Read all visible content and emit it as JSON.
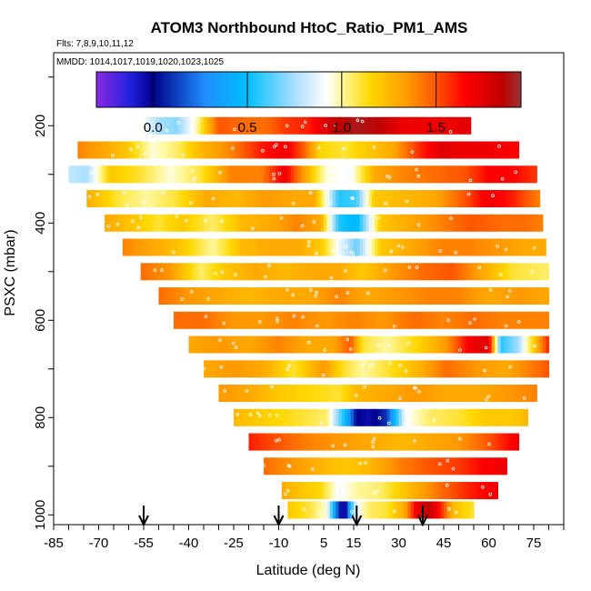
{
  "chart_data": {
    "type": "heatmap",
    "title": "ATOM3 Northbound HtoC_Ratio_PM1_AMS",
    "flights_note": "Flts: 7,8,9,10,11,12",
    "dates_note": "MMDD: 1014,1017,1019,1020,1023,1025",
    "xlabel": "Latitude (deg N)",
    "ylabel": "PSXC (mbar)",
    "xlim": [
      -85,
      85
    ],
    "ylim": [
      1020,
      50
    ],
    "x_ticks": [
      -85,
      -70,
      -55,
      -40,
      -25,
      -10,
      5,
      15,
      30,
      45,
      60,
      75
    ],
    "x_tick_labels": [
      "-85",
      "-70",
      "-55",
      "-40",
      "-25",
      "-10",
      "5",
      "15",
      "30",
      "45",
      "60",
      "75"
    ],
    "y_ticks": [
      200,
      400,
      600,
      800,
      1000
    ],
    "y_tick_labels": [
      "200",
      "400",
      "600",
      "800",
      "1000"
    ],
    "colorbar": {
      "min": -0.3,
      "max": 1.95,
      "ticks": [
        0.0,
        0.5,
        1.0,
        1.5
      ],
      "tick_labels": [
        "0.0",
        "0.5",
        "1.0",
        "1.5"
      ],
      "stops": [
        {
          "v": -0.3,
          "c": "#8a2be2"
        },
        {
          "v": -0.12,
          "c": "#2020dd"
        },
        {
          "v": 0.0,
          "c": "#00008b"
        },
        {
          "v": 0.28,
          "c": "#1e90ff"
        },
        {
          "v": 0.5,
          "c": "#00bfff"
        },
        {
          "v": 0.75,
          "c": "#aaddff"
        },
        {
          "v": 0.92,
          "c": "#ffffff"
        },
        {
          "v": 1.0,
          "c": "#fff8a0"
        },
        {
          "v": 1.15,
          "c": "#ffd700"
        },
        {
          "v": 1.35,
          "c": "#ff9900"
        },
        {
          "v": 1.5,
          "c": "#ff5500"
        },
        {
          "v": 1.65,
          "c": "#ff0000"
        },
        {
          "v": 1.85,
          "c": "#c00000"
        },
        {
          "v": 1.95,
          "c": "#993333"
        }
      ]
    },
    "arrow_latitudes": [
      -55,
      -10,
      16,
      38
    ],
    "bands": [
      {
        "p": 200,
        "lat0": -56,
        "lat1": 54,
        "cp": [
          [
            -56,
            0.95
          ],
          [
            -50,
            0.75
          ],
          [
            -44,
            0.7
          ],
          [
            -38,
            0.95
          ],
          [
            -30,
            1.5
          ],
          [
            -22,
            1.45
          ],
          [
            -14,
            1.45
          ],
          [
            -8,
            1.55
          ],
          [
            0,
            1.6
          ],
          [
            8,
            1.82
          ],
          [
            16,
            1.9
          ],
          [
            24,
            1.85
          ],
          [
            32,
            1.7
          ],
          [
            40,
            1.7
          ],
          [
            48,
            1.7
          ],
          [
            54,
            1.75
          ]
        ]
      },
      {
        "p": 250,
        "lat0": -77,
        "lat1": 70,
        "cp": [
          [
            -77,
            1.4
          ],
          [
            -68,
            1.3
          ],
          [
            -60,
            1.2
          ],
          [
            -52,
            0.95
          ],
          [
            -44,
            1.05
          ],
          [
            -36,
            1.25
          ],
          [
            -26,
            1.4
          ],
          [
            -16,
            1.6
          ],
          [
            -8,
            1.7
          ],
          [
            -2,
            1.5
          ],
          [
            4,
            1.15
          ],
          [
            12,
            1.1
          ],
          [
            20,
            1.2
          ],
          [
            28,
            1.3
          ],
          [
            36,
            1.55
          ],
          [
            44,
            1.75
          ],
          [
            52,
            1.7
          ],
          [
            60,
            1.7
          ],
          [
            70,
            1.65
          ]
        ]
      },
      {
        "p": 300,
        "lat0": -80,
        "lat1": 76,
        "cp": [
          [
            -80,
            0.8
          ],
          [
            -74,
            0.75
          ],
          [
            -66,
            1.2
          ],
          [
            -56,
            1.1
          ],
          [
            -46,
            0.95
          ],
          [
            -36,
            1.1
          ],
          [
            -26,
            1.4
          ],
          [
            -16,
            1.4
          ],
          [
            -8,
            1.7
          ],
          [
            -2,
            1.35
          ],
          [
            6,
            0.95
          ],
          [
            14,
            0.9
          ],
          [
            22,
            1.3
          ],
          [
            32,
            1.4
          ],
          [
            42,
            1.45
          ],
          [
            52,
            1.5
          ],
          [
            60,
            1.65
          ],
          [
            68,
            1.65
          ],
          [
            76,
            1.55
          ]
        ]
      },
      {
        "p": 350,
        "lat0": -74,
        "lat1": 77,
        "cp": [
          [
            -74,
            1.3
          ],
          [
            -64,
            1.1
          ],
          [
            -54,
            1.0
          ],
          [
            -44,
            1.1
          ],
          [
            -34,
            1.3
          ],
          [
            -24,
            1.25
          ],
          [
            -14,
            1.35
          ],
          [
            -6,
            1.3
          ],
          [
            2,
            1.3
          ],
          [
            10,
            0.55
          ],
          [
            16,
            0.6
          ],
          [
            22,
            1.2
          ],
          [
            32,
            1.25
          ],
          [
            42,
            1.3
          ],
          [
            52,
            1.5
          ],
          [
            60,
            1.7
          ],
          [
            68,
            1.6
          ],
          [
            77,
            1.4
          ]
        ]
      },
      {
        "p": 400,
        "lat0": -68,
        "lat1": 78,
        "cp": [
          [
            -68,
            1.3
          ],
          [
            -58,
            1.2
          ],
          [
            -50,
            1.1
          ],
          [
            -42,
            1.2
          ],
          [
            -32,
            1.05
          ],
          [
            -22,
            1.25
          ],
          [
            -12,
            1.3
          ],
          [
            -4,
            1.4
          ],
          [
            4,
            1.3
          ],
          [
            10,
            0.55
          ],
          [
            16,
            0.45
          ],
          [
            24,
            1.2
          ],
          [
            34,
            1.3
          ],
          [
            44,
            1.4
          ],
          [
            54,
            1.5
          ],
          [
            64,
            1.45
          ],
          [
            72,
            1.45
          ],
          [
            78,
            1.4
          ]
        ]
      },
      {
        "p": 450,
        "lat0": -62,
        "lat1": 79,
        "cp": [
          [
            -62,
            1.4
          ],
          [
            -52,
            1.3
          ],
          [
            -42,
            1.2
          ],
          [
            -32,
            1.0
          ],
          [
            -22,
            1.25
          ],
          [
            -12,
            1.3
          ],
          [
            -4,
            1.3
          ],
          [
            4,
            1.2
          ],
          [
            10,
            0.9
          ],
          [
            16,
            0.65
          ],
          [
            24,
            1.2
          ],
          [
            34,
            1.3
          ],
          [
            44,
            1.4
          ],
          [
            54,
            1.4
          ],
          [
            64,
            1.35
          ],
          [
            72,
            1.3
          ],
          [
            79,
            1.3
          ]
        ]
      },
      {
        "p": 500,
        "lat0": -56,
        "lat1": 80,
        "cp": [
          [
            -56,
            1.45
          ],
          [
            -46,
            1.35
          ],
          [
            -36,
            1.05
          ],
          [
            -28,
            1.2
          ],
          [
            -18,
            1.3
          ],
          [
            -8,
            1.25
          ],
          [
            2,
            1.3
          ],
          [
            10,
            1.3
          ],
          [
            18,
            1.2
          ],
          [
            28,
            1.35
          ],
          [
            38,
            1.45
          ],
          [
            48,
            1.5
          ],
          [
            58,
            1.3
          ],
          [
            68,
            1.1
          ],
          [
            80,
            1.05
          ]
        ]
      },
      {
        "p": 550,
        "lat0": -50,
        "lat1": 80,
        "cp": [
          [
            -50,
            1.45
          ],
          [
            -40,
            1.35
          ],
          [
            -30,
            1.3
          ],
          [
            -20,
            1.25
          ],
          [
            -10,
            1.3
          ],
          [
            0,
            1.3
          ],
          [
            10,
            1.4
          ],
          [
            20,
            1.3
          ],
          [
            30,
            1.35
          ],
          [
            40,
            1.4
          ],
          [
            50,
            1.4
          ],
          [
            60,
            1.3
          ],
          [
            70,
            1.35
          ],
          [
            80,
            1.3
          ]
        ]
      },
      {
        "p": 600,
        "lat0": -45,
        "lat1": 80,
        "cp": [
          [
            -45,
            1.45
          ],
          [
            -35,
            1.45
          ],
          [
            -25,
            1.35
          ],
          [
            -15,
            1.35
          ],
          [
            -5,
            1.4
          ],
          [
            5,
            1.35
          ],
          [
            15,
            1.4
          ],
          [
            25,
            1.35
          ],
          [
            35,
            1.45
          ],
          [
            45,
            1.4
          ],
          [
            55,
            1.45
          ],
          [
            65,
            1.4
          ],
          [
            80,
            1.4
          ]
        ]
      },
      {
        "p": 650,
        "lat0": -40,
        "lat1": 80,
        "cp": [
          [
            -40,
            1.3
          ],
          [
            -30,
            1.35
          ],
          [
            -20,
            1.3
          ],
          [
            -10,
            1.4
          ],
          [
            0,
            1.3
          ],
          [
            8,
            1.3
          ],
          [
            14,
            1.5
          ],
          [
            18,
            1.1
          ],
          [
            26,
            1.0
          ],
          [
            36,
            1.15
          ],
          [
            46,
            1.35
          ],
          [
            54,
            1.7
          ],
          [
            60,
            1.75
          ],
          [
            64,
            0.55
          ],
          [
            70,
            0.75
          ],
          [
            80,
            1.6
          ]
        ]
      },
      {
        "p": 700,
        "lat0": -35,
        "lat1": 80,
        "cp": [
          [
            -35,
            1.3
          ],
          [
            -25,
            1.35
          ],
          [
            -15,
            1.3
          ],
          [
            -5,
            1.1
          ],
          [
            5,
            1.35
          ],
          [
            12,
            1.1
          ],
          [
            18,
            1.0
          ],
          [
            26,
            1.1
          ],
          [
            36,
            1.25
          ],
          [
            46,
            1.45
          ],
          [
            56,
            1.35
          ],
          [
            66,
            1.3
          ],
          [
            80,
            1.5
          ]
        ]
      },
      {
        "p": 750,
        "lat0": -30,
        "lat1": 76,
        "cp": [
          [
            -30,
            1.35
          ],
          [
            -20,
            1.3
          ],
          [
            -10,
            1.2
          ],
          [
            0,
            1.15
          ],
          [
            10,
            1.1
          ],
          [
            16,
            1.25
          ],
          [
            26,
            1.3
          ],
          [
            36,
            1.35
          ],
          [
            46,
            1.3
          ],
          [
            56,
            1.3
          ],
          [
            66,
            1.35
          ],
          [
            76,
            1.4
          ]
        ]
      },
      {
        "p": 800,
        "lat0": -25,
        "lat1": 73,
        "cp": [
          [
            -25,
            1.25
          ],
          [
            -18,
            1.2
          ],
          [
            -10,
            1.15
          ],
          [
            -2,
            1.1
          ],
          [
            6,
            1.05
          ],
          [
            12,
            0.5
          ],
          [
            16,
            0.0
          ],
          [
            20,
            -0.05
          ],
          [
            26,
            0.1
          ],
          [
            32,
            0.9
          ],
          [
            40,
            1.05
          ],
          [
            50,
            1.1
          ],
          [
            60,
            1.2
          ],
          [
            68,
            1.2
          ],
          [
            73,
            1.25
          ]
        ]
      },
      {
        "p": 850,
        "lat0": -20,
        "lat1": 70,
        "cp": [
          [
            -20,
            1.6
          ],
          [
            -10,
            1.5
          ],
          [
            0,
            1.4
          ],
          [
            10,
            1.35
          ],
          [
            20,
            1.3
          ],
          [
            30,
            1.25
          ],
          [
            40,
            1.3
          ],
          [
            50,
            1.35
          ],
          [
            60,
            1.5
          ],
          [
            70,
            1.7
          ]
        ]
      },
      {
        "p": 900,
        "lat0": -15,
        "lat1": 66,
        "cp": [
          [
            -15,
            1.45
          ],
          [
            -5,
            1.35
          ],
          [
            5,
            1.25
          ],
          [
            12,
            1.2
          ],
          [
            20,
            1.25
          ],
          [
            30,
            1.4
          ],
          [
            40,
            1.5
          ],
          [
            50,
            1.55
          ],
          [
            58,
            1.65
          ],
          [
            66,
            1.7
          ]
        ]
      },
      {
        "p": 950,
        "lat0": -9,
        "lat1": 63,
        "cp": [
          [
            -9,
            1.3
          ],
          [
            -2,
            1.2
          ],
          [
            4,
            1.15
          ],
          [
            10,
            0.9
          ],
          [
            16,
            1.0
          ],
          [
            24,
            1.05
          ],
          [
            34,
            1.25
          ],
          [
            44,
            1.45
          ],
          [
            54,
            1.6
          ],
          [
            63,
            1.7
          ]
        ]
      },
      {
        "p": 990,
        "lat0": -7,
        "lat1": 55,
        "cp": [
          [
            -7,
            1.2
          ],
          [
            0,
            1.1
          ],
          [
            6,
            0.95
          ],
          [
            10,
            0.1
          ],
          [
            12,
            -0.1
          ],
          [
            14,
            0.5
          ],
          [
            16,
            0.9
          ],
          [
            20,
            1.05
          ],
          [
            26,
            1.1
          ],
          [
            32,
            1.3
          ],
          [
            36,
            1.7
          ],
          [
            40,
            1.85
          ],
          [
            44,
            1.6
          ],
          [
            48,
            1.25
          ],
          [
            55,
            1.1
          ]
        ]
      }
    ]
  }
}
